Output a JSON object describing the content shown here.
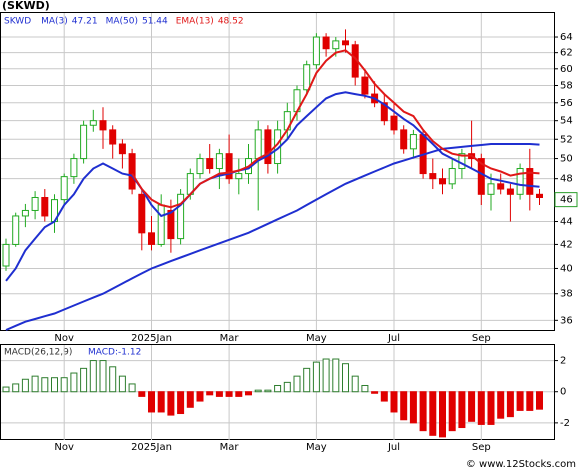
{
  "chart_data": [
    {
      "type": "candlestick",
      "title": "(SKWD)",
      "log_scale": true,
      "grid": true,
      "categories": [
        null,
        null,
        null,
        null,
        null,
        null,
        "Nov",
        null,
        null,
        null,
        null,
        null,
        null,
        null,
        null,
        "2025Jan",
        null,
        null,
        null,
        null,
        null,
        null,
        null,
        "Mar",
        null,
        null,
        null,
        null,
        null,
        null,
        null,
        null,
        "May",
        null,
        null,
        null,
        null,
        null,
        null,
        null,
        "Jul",
        null,
        null,
        null,
        null,
        null,
        null,
        null,
        null,
        "Sep",
        null,
        null,
        null,
        null,
        null,
        null
      ],
      "ylim": [
        35.3,
        67.2
      ],
      "yticks": [
        36,
        38,
        40,
        42,
        44,
        48,
        50,
        52,
        54,
        56,
        58,
        60,
        62,
        64
      ],
      "last_price": 46,
      "series": [
        {
          "name": "SKWD",
          "up_color": "#22aa22",
          "down_color": "#e00000",
          "open": [
            40.2,
            42.0,
            44.5,
            45.0,
            46.2,
            44.0,
            46.0,
            48.2,
            50.0,
            53.5,
            54.0,
            53.0,
            51.5,
            50.5,
            46.5,
            43.0,
            42.0,
            45.0,
            42.5,
            46.5,
            48.5,
            50.0,
            49.0,
            50.5,
            48.0,
            48.5,
            50.0,
            53.0,
            49.5,
            53.0,
            55.0,
            57.5,
            60.5,
            64.0,
            62.5,
            63.5,
            63.0,
            59.0,
            57.0,
            56.0,
            54.5,
            53.0,
            51.0,
            52.5,
            48.5,
            48.0,
            47.5,
            49.0,
            50.5,
            50.0,
            46.5,
            47.5,
            47.0,
            46.5,
            49.0,
            46.5
          ],
          "high": [
            42.5,
            44.8,
            45.6,
            46.8,
            47.0,
            46.5,
            48.5,
            50.5,
            54.0,
            55.2,
            55.5,
            53.5,
            52.0,
            51.0,
            47.0,
            44.5,
            46.5,
            46.0,
            47.0,
            49.0,
            50.5,
            51.5,
            51.0,
            52.5,
            50.0,
            51.5,
            54.0,
            53.5,
            54.0,
            56.0,
            58.0,
            61.0,
            64.5,
            64.5,
            64.0,
            65.0,
            63.5,
            60.0,
            58.5,
            57.0,
            56.0,
            53.5,
            53.0,
            53.0,
            50.0,
            49.0,
            50.0,
            51.0,
            54.0,
            50.5,
            48.5,
            48.5,
            47.5,
            49.5,
            51.0,
            47.0
          ],
          "low": [
            39.8,
            41.8,
            43.5,
            44.2,
            44.0,
            43.0,
            45.5,
            47.5,
            49.5,
            52.8,
            51.0,
            50.0,
            49.0,
            46.5,
            41.5,
            41.5,
            41.8,
            41.3,
            42.0,
            46.0,
            48.0,
            48.5,
            47.0,
            47.5,
            46.5,
            47.5,
            45.0,
            48.5,
            48.5,
            52.0,
            54.0,
            57.0,
            60.0,
            61.5,
            61.5,
            62.0,
            58.0,
            56.5,
            55.5,
            53.5,
            52.5,
            50.5,
            50.0,
            48.0,
            47.0,
            46.5,
            47.0,
            48.0,
            49.0,
            45.5,
            45.0,
            46.5,
            44.0,
            46.0,
            45.0,
            45.5
          ],
          "close": [
            42.0,
            44.5,
            45.0,
            46.2,
            44.5,
            46.0,
            48.2,
            50.0,
            53.5,
            54.0,
            53.0,
            51.5,
            50.5,
            47.0,
            43.0,
            42.0,
            45.5,
            42.5,
            46.5,
            48.5,
            50.0,
            49.0,
            50.5,
            48.0,
            48.5,
            50.0,
            53.0,
            49.5,
            53.0,
            55.0,
            57.5,
            60.5,
            64.0,
            62.5,
            63.5,
            63.0,
            59.0,
            57.0,
            56.0,
            54.0,
            53.0,
            51.0,
            52.5,
            48.5,
            48.0,
            47.5,
            49.0,
            50.5,
            50.0,
            46.5,
            47.5,
            47.0,
            46.5,
            49.0,
            46.5,
            46.2
          ]
        },
        {
          "name": "MA(3)",
          "color": "#1f2fd0",
          "last_value": 47.21,
          "values": [
            39.0,
            40.0,
            41.5,
            42.5,
            43.5,
            44.0,
            45.5,
            46.5,
            48.0,
            49.0,
            49.5,
            49.0,
            48.5,
            48.3,
            47.0,
            45.5,
            44.5,
            44.8,
            45.5,
            46.5,
            47.5,
            48.0,
            48.3,
            48.5,
            48.8,
            49.0,
            49.8,
            50.3,
            51.0,
            52.0,
            53.5,
            54.5,
            55.5,
            56.5,
            57.0,
            57.2,
            57.0,
            56.8,
            56.5,
            55.8,
            55.0,
            54.2,
            53.5,
            52.5,
            51.5,
            50.5,
            50.0,
            49.5,
            49.0,
            48.5,
            48.0,
            47.8,
            47.6,
            47.4,
            47.3,
            47.21
          ]
        },
        {
          "name": "MA(50)",
          "color": "#1f2fd0",
          "last_value": 51.44,
          "values": [
            35.3,
            35.6,
            35.9,
            36.1,
            36.3,
            36.5,
            36.8,
            37.1,
            37.4,
            37.7,
            38.0,
            38.4,
            38.8,
            39.2,
            39.6,
            40.0,
            40.3,
            40.6,
            40.9,
            41.2,
            41.5,
            41.8,
            42.1,
            42.4,
            42.7,
            43.0,
            43.4,
            43.8,
            44.2,
            44.6,
            45.0,
            45.5,
            46.0,
            46.5,
            47.0,
            47.5,
            47.9,
            48.3,
            48.7,
            49.1,
            49.5,
            49.8,
            50.1,
            50.4,
            50.7,
            51.0,
            51.1,
            51.2,
            51.3,
            51.4,
            51.5,
            51.5,
            51.5,
            51.5,
            51.5,
            51.44
          ]
        },
        {
          "name": "EMA(13)",
          "color": "#e01818",
          "last_value": 48.52,
          "values": [
            null,
            null,
            null,
            null,
            null,
            null,
            null,
            null,
            null,
            null,
            null,
            null,
            null,
            48.5,
            47.0,
            46.0,
            45.5,
            45.3,
            45.6,
            46.5,
            47.5,
            48.0,
            48.5,
            48.6,
            48.8,
            49.2,
            50.0,
            50.5,
            51.5,
            53.0,
            55.0,
            57.0,
            59.5,
            61.0,
            62.0,
            62.3,
            61.3,
            59.8,
            58.2,
            57.0,
            56.0,
            55.0,
            54.5,
            53.0,
            51.8,
            51.0,
            50.5,
            50.3,
            50.3,
            49.5,
            49.0,
            48.7,
            48.3,
            48.5,
            48.6,
            48.52
          ]
        }
      ]
    },
    {
      "type": "bar",
      "title": "MACD(26,12,9)",
      "subtitle": "MACD:-1.12",
      "grid": true,
      "categories": [
        null,
        null,
        null,
        null,
        null,
        null,
        "Nov",
        null,
        null,
        null,
        null,
        null,
        null,
        null,
        null,
        "2025Jan",
        null,
        null,
        null,
        null,
        null,
        null,
        null,
        "Mar",
        null,
        null,
        null,
        null,
        null,
        null,
        null,
        null,
        "May",
        null,
        null,
        null,
        null,
        null,
        null,
        null,
        "Jul",
        null,
        null,
        null,
        null,
        null,
        null,
        null,
        null,
        "Sep",
        null,
        null,
        null,
        null,
        null,
        null
      ],
      "ylim": [
        -3.1,
        3.0
      ],
      "yticks": [
        -2,
        0,
        2
      ],
      "up_color": "#2e7d2e",
      "down_color": "#e00000",
      "values": [
        0.3,
        0.5,
        0.8,
        1.0,
        0.9,
        0.9,
        0.9,
        1.2,
        1.5,
        2.0,
        2.0,
        1.6,
        1.0,
        0.5,
        -0.3,
        -1.3,
        -1.3,
        -1.5,
        -1.4,
        -1.0,
        -0.6,
        -0.2,
        -0.3,
        -0.3,
        -0.3,
        -0.2,
        0.1,
        0.1,
        0.4,
        0.6,
        1.0,
        1.5,
        1.9,
        2.1,
        2.1,
        1.8,
        1.0,
        0.4,
        -0.1,
        -0.6,
        -1.3,
        -1.8,
        -2.0,
        -2.5,
        -2.8,
        -2.9,
        -2.5,
        -2.3,
        -1.9,
        -2.1,
        -2.1,
        -1.7,
        -1.6,
        -1.2,
        -1.2,
        -1.12
      ]
    }
  ],
  "footer": "© www.12Stocks.com"
}
